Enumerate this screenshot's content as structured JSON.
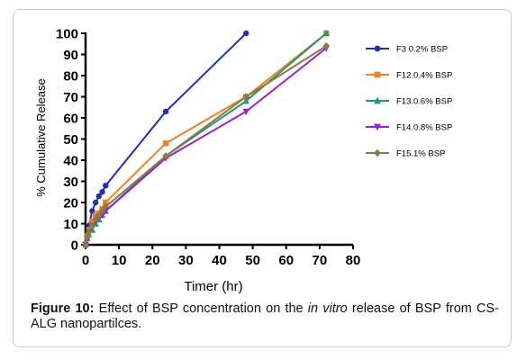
{
  "chart_data": {
    "type": "line",
    "title": "",
    "xlabel": "Timer (hr)",
    "ylabel": "% Cumulative Release",
    "xlim": [
      0,
      80
    ],
    "ylim": [
      0,
      100
    ],
    "xticks": [
      "0",
      "10",
      "20",
      "30",
      "40",
      "50",
      "60",
      "70",
      "80"
    ],
    "yticks": [
      "0",
      "10",
      "20",
      "30",
      "40",
      "50",
      "60",
      "70",
      "80",
      "90",
      "100"
    ],
    "grid": false,
    "legend_position": "right",
    "series": [
      {
        "name": "F3 0.2% BSP",
        "color": "#1f2fbf",
        "marker": "circle",
        "x": [
          0,
          0.5,
          1,
          2,
          3,
          4,
          5,
          6,
          24,
          48
        ],
        "y": [
          0,
          5,
          9,
          16,
          20,
          23,
          25,
          28,
          63,
          100
        ]
      },
      {
        "name": "F12.0.4% BSP",
        "color": "#f4801f",
        "marker": "square",
        "x": [
          0,
          0.5,
          1,
          2,
          3,
          4,
          5,
          6,
          24,
          48,
          72
        ],
        "y": [
          0,
          4,
          7,
          11,
          14,
          15,
          17,
          20,
          48,
          70,
          100
        ]
      },
      {
        "name": "F13.0.6% BSP",
        "color": "#1e9a6e",
        "marker": "triangle-up",
        "x": [
          0,
          0.5,
          1,
          2,
          3,
          4,
          5,
          6,
          24,
          48,
          72
        ],
        "y": [
          0,
          3,
          5,
          7,
          10,
          12,
          14,
          16,
          42,
          68,
          100
        ]
      },
      {
        "name": "F14.0.8% BSP",
        "color": "#9b1fd6",
        "marker": "triangle-down",
        "x": [
          0,
          0.5,
          1,
          2,
          3,
          4,
          5,
          6,
          24,
          48,
          72
        ],
        "y": [
          0,
          3,
          6,
          9,
          11,
          13,
          14,
          16,
          41,
          63,
          93
        ]
      },
      {
        "name": "F15.1% BSP",
        "color": "#8a7a45",
        "marker": "diamond",
        "x": [
          0,
          0.5,
          1,
          2,
          3,
          4,
          5,
          6,
          24,
          48,
          72
        ],
        "y": [
          0,
          4,
          6,
          9,
          12,
          14,
          16,
          18,
          42,
          70,
          94
        ]
      }
    ]
  },
  "caption": {
    "label": "Figure 10:",
    "text_before": " Effect of BSP concentration on the ",
    "italic": "in vitro",
    "text_after": " release of BSP from CS-ALG nanopartilces."
  }
}
